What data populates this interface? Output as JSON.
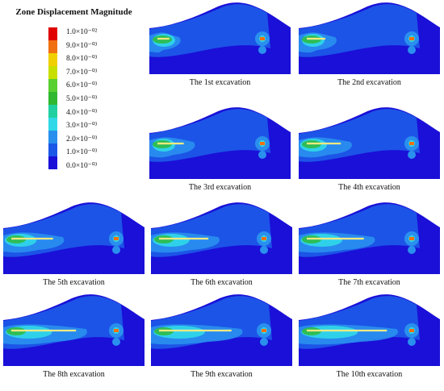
{
  "title": "Zone Displacement Magnitude",
  "legend": {
    "labels": [
      "1.0×10⁻⁰²",
      "9.0×10⁻⁰³",
      "8.0×10⁻⁰³",
      "7.0×10⁻⁰³",
      "6.0×10⁻⁰³",
      "5.0×10⁻⁰³",
      "4.0×10⁻⁰³",
      "3.0×10⁻⁰³",
      "2.0×10⁻⁰³",
      "1.0×10⁻⁰³",
      "0.0×10⁻⁰³"
    ],
    "colors": [
      "#e00000",
      "#f07010",
      "#f0d000",
      "#c8e000",
      "#58d030",
      "#30b830",
      "#20d0a0",
      "#30d8e8",
      "#2a90ee",
      "#1c58e8",
      "#1a10d8"
    ]
  },
  "panels": [
    {
      "caption": "The 1st excavation",
      "tunnel": 0.09
    },
    {
      "caption": "The 2nd excavation",
      "tunnel": 0.16
    },
    {
      "caption": "The 3rd excavation",
      "tunnel": 0.24
    },
    {
      "caption": "The 4th excavation",
      "tunnel": 0.32
    },
    {
      "caption": "The 5th excavation",
      "tunnel": 0.4
    },
    {
      "caption": "The 6th excavation",
      "tunnel": 0.48
    },
    {
      "caption": "The 7th excavation",
      "tunnel": 0.56
    },
    {
      "caption": "The 8th excavation",
      "tunnel": 0.64
    },
    {
      "caption": "The 9th excavation",
      "tunnel": 0.72
    },
    {
      "caption": "The 10th excavation",
      "tunnel": 0.8
    }
  ]
}
